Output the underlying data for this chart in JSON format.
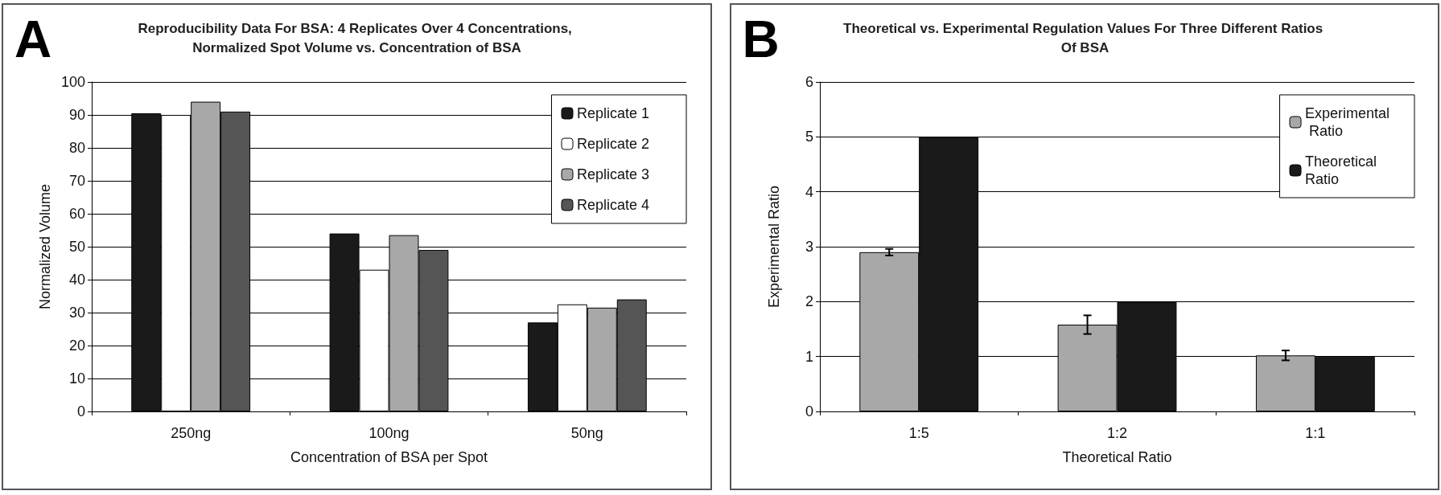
{
  "chart_data": [
    {
      "type": "bar",
      "title": "Reproducibility Data For BSA: 4 Replicates Over 4 Concentrations, Normalized Spot Volume vs. Concentration of BSA",
      "xlabel": "Concentration of BSA per Spot",
      "ylabel": "Normalized Volume",
      "annotations": [
        "A"
      ],
      "categories": [
        "250ng",
        "100ng",
        "50ng"
      ],
      "series": [
        {
          "name": "Replicate 1",
          "color": "#1a1a1a",
          "values": [
            90.5,
            54,
            27
          ]
        },
        {
          "name": "Replicate 2",
          "color": "#ffffff",
          "values": [
            90,
            43,
            32.5
          ]
        },
        {
          "name": "Replicate 3",
          "color": "#a8a8a8",
          "values": [
            94,
            53.5,
            31.5
          ]
        },
        {
          "name": "Replicate 4",
          "color": "#555555",
          "values": [
            91,
            49,
            34
          ]
        }
      ],
      "ylim": [
        0,
        100
      ],
      "yticks": [
        0,
        10,
        20,
        30,
        40,
        50,
        60,
        70,
        80,
        90,
        100
      ],
      "grid": "y",
      "legend": "top right"
    },
    {
      "type": "bar",
      "title": "Theoretical vs. Experimental Regulation Values For Three Different Ratios Of BSA",
      "xlabel": "Theoretical Ratio",
      "ylabel": "Experimental Ratio",
      "annotations": [
        "B"
      ],
      "categories": [
        "1:5",
        "1:2",
        "1:1"
      ],
      "series": [
        {
          "name": "Experimental Ratio",
          "color": "#a8a8a8",
          "values": [
            2.9,
            1.58,
            1.02
          ],
          "errors": [
            0.06,
            0.17,
            0.09
          ]
        },
        {
          "name": "Theoretical Ratio",
          "color": "#1a1a1a",
          "values": [
            5,
            2,
            1
          ]
        }
      ],
      "ylim": [
        0,
        6
      ],
      "yticks": [
        0,
        1,
        2,
        3,
        4,
        5,
        6
      ],
      "grid": "y",
      "legend": "top right"
    }
  ]
}
